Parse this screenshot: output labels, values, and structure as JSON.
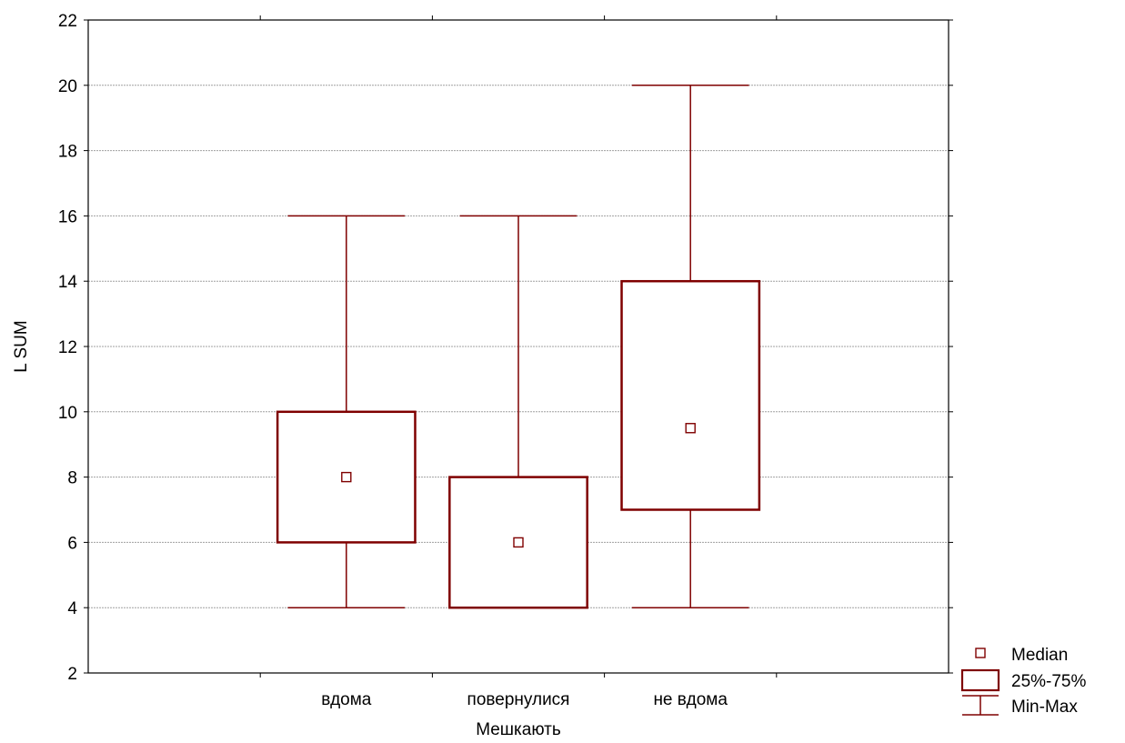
{
  "chart_data": {
    "type": "boxplot",
    "title": "",
    "xlabel": "Мешкають",
    "ylabel": "L SUM",
    "ylim": [
      2,
      22
    ],
    "yticks": [
      2,
      4,
      6,
      8,
      10,
      12,
      14,
      16,
      18,
      20,
      22
    ],
    "grid": true,
    "categories": [
      "вдома",
      "повернулися",
      "не вдома"
    ],
    "boxes": [
      {
        "category": "вдома",
        "min": 4,
        "q1": 6,
        "median": 8,
        "q3": 10,
        "max": 16
      },
      {
        "category": "повернулися",
        "min": 4,
        "q1": 4,
        "median": 6,
        "q3": 8,
        "max": 16
      },
      {
        "category": "не вдома",
        "min": 4,
        "q1": 7,
        "median": 9.5,
        "q3": 14,
        "max": 20
      }
    ],
    "legend": {
      "position": "bottom-right",
      "entries": [
        "Median",
        "25%-75%",
        "Min-Max"
      ]
    },
    "colors": {
      "series": "#7f0000",
      "grid": "#a0a0a0",
      "axis": "#000000"
    }
  }
}
